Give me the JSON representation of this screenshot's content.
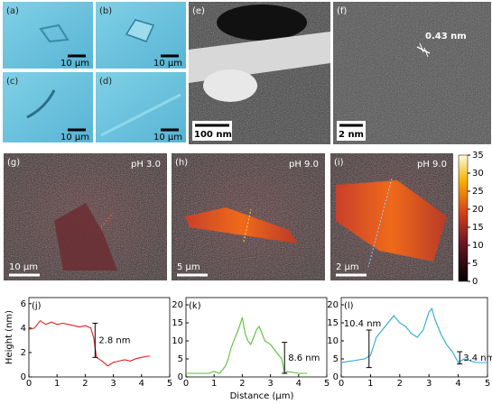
{
  "panels": [
    {
      "label": "(a)",
      "scale_bar": "10 µm"
    },
    {
      "label": "(b)",
      "scale_bar": "10 µm"
    },
    {
      "label": "(c)",
      "scale_bar": "10 µm"
    },
    {
      "label": "(d)",
      "scale_bar": "10 µm"
    },
    {
      "label": "(e)",
      "scale_bar": "100 nm"
    },
    {
      "label": "(f)",
      "scale_bar": "2 nm",
      "annotation": "0.43 nm"
    },
    {
      "label": "(g)",
      "scale_bar": "10 µm",
      "condition": "pH 3.0"
    },
    {
      "label": "(h)",
      "scale_bar": "5 µm",
      "condition": "pH 9.0"
    },
    {
      "label": "(i)",
      "scale_bar": "2 µm",
      "condition": "pH 9.0"
    }
  ],
  "chart_data": [
    {
      "type": "colorbar",
      "ylim": [
        0,
        35
      ],
      "yticks": [
        0,
        5,
        10,
        15,
        20,
        25,
        30,
        35
      ]
    },
    {
      "type": "line",
      "label": "(j)",
      "ylabel": "Height (nm)",
      "color": "#e02020",
      "xlim": [
        0,
        5
      ],
      "xticks": [
        0,
        1,
        2,
        3,
        4,
        5
      ],
      "ylim": [
        0,
        6.5
      ],
      "yticks": [
        0,
        2,
        4,
        6
      ],
      "x": [
        0,
        0.2,
        0.4,
        0.6,
        0.8,
        1.0,
        1.2,
        1.4,
        1.6,
        1.8,
        2.0,
        2.2,
        2.3,
        2.4,
        2.6,
        2.8,
        3.0,
        3.2,
        3.4,
        3.6,
        3.8,
        4.0,
        4.2,
        4.3
      ],
      "values": [
        3.9,
        4.0,
        4.6,
        4.3,
        4.5,
        4.3,
        4.4,
        4.3,
        4.2,
        4.1,
        4.2,
        4.0,
        3.2,
        1.6,
        1.3,
        0.9,
        1.2,
        1.3,
        1.4,
        1.3,
        1.5,
        1.6,
        1.7,
        1.7
      ],
      "annotations": [
        "2.8 nm"
      ]
    },
    {
      "type": "line",
      "label": "(k)",
      "xlabel": "Distance (µm)",
      "color": "#5cbf3a",
      "xlim": [
        0,
        5
      ],
      "xticks": [
        0,
        1,
        2,
        3,
        4,
        5
      ],
      "ylim": [
        0,
        22
      ],
      "yticks": [
        0,
        5,
        10,
        15,
        20
      ],
      "x": [
        0,
        0.4,
        0.8,
        1.0,
        1.2,
        1.4,
        1.5,
        1.6,
        1.7,
        1.8,
        1.9,
        2.0,
        2.1,
        2.2,
        2.3,
        2.4,
        2.5,
        2.6,
        2.7,
        2.8,
        3.0,
        3.2,
        3.4,
        3.5,
        3.6,
        4.0,
        4.3
      ],
      "values": [
        1,
        1,
        1,
        1.5,
        1,
        3,
        5,
        8,
        10,
        12,
        14,
        16.5,
        12,
        10,
        9,
        11,
        13,
        14,
        12,
        10,
        9,
        7,
        5,
        1,
        1.5,
        1,
        1
      ],
      "annotations": [
        "8.6 nm"
      ]
    },
    {
      "type": "line",
      "label": "(l)",
      "color": "#2aa8d8",
      "xlim": [
        0,
        5
      ],
      "xticks": [
        0,
        1,
        2,
        3,
        4,
        5
      ],
      "ylim": [
        0,
        22
      ],
      "yticks": [
        0,
        5,
        10,
        15,
        20
      ],
      "x": [
        0,
        0.4,
        0.8,
        1.0,
        1.2,
        1.4,
        1.6,
        1.8,
        2.0,
        2.2,
        2.4,
        2.6,
        2.8,
        3.0,
        3.1,
        3.2,
        3.4,
        3.6,
        3.8,
        4.0,
        4.2,
        4.6,
        5.0
      ],
      "values": [
        4,
        4.5,
        5,
        6,
        11,
        13,
        15,
        17,
        15,
        14,
        12,
        11,
        13,
        18,
        19,
        16,
        12,
        9,
        7,
        4,
        5,
        4,
        4
      ],
      "annotations": [
        "10.4 nm",
        "3.4 nm"
      ]
    }
  ]
}
